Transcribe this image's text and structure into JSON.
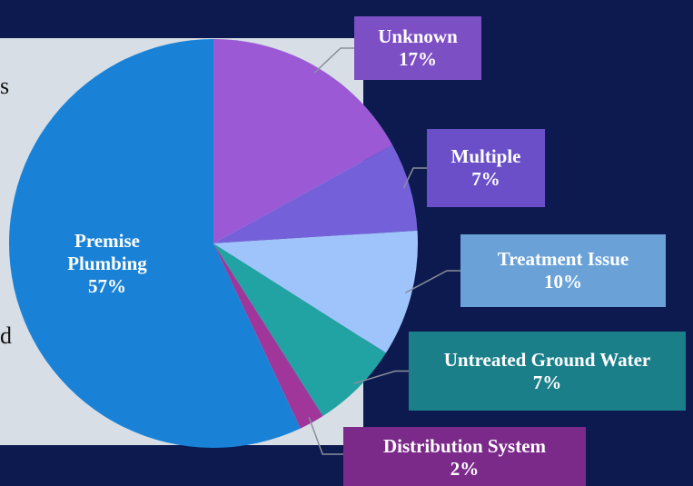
{
  "chart_data": {
    "type": "pie",
    "categories": [
      "Unknown",
      "Multiple",
      "Treatment Issue",
      "Untreated Ground Water",
      "Distribution System",
      "Premise Plumbing"
    ],
    "values": [
      17,
      7,
      10,
      7,
      2,
      57
    ],
    "value_labels": [
      "17%",
      "7%",
      "10%",
      "7%",
      "2%",
      "57%"
    ],
    "colors": [
      "#9b59d6",
      "#7461d9",
      "#9fc4fb",
      "#22a3a3",
      "#a0359a",
      "#1a82d6"
    ],
    "label_colors": [
      "#7d4fc4",
      "#6a4fc8",
      "#6aa2d8",
      "#1b7f8a",
      "#7b2a8a",
      null
    ]
  },
  "background_text": [
    "s",
    "d"
  ]
}
